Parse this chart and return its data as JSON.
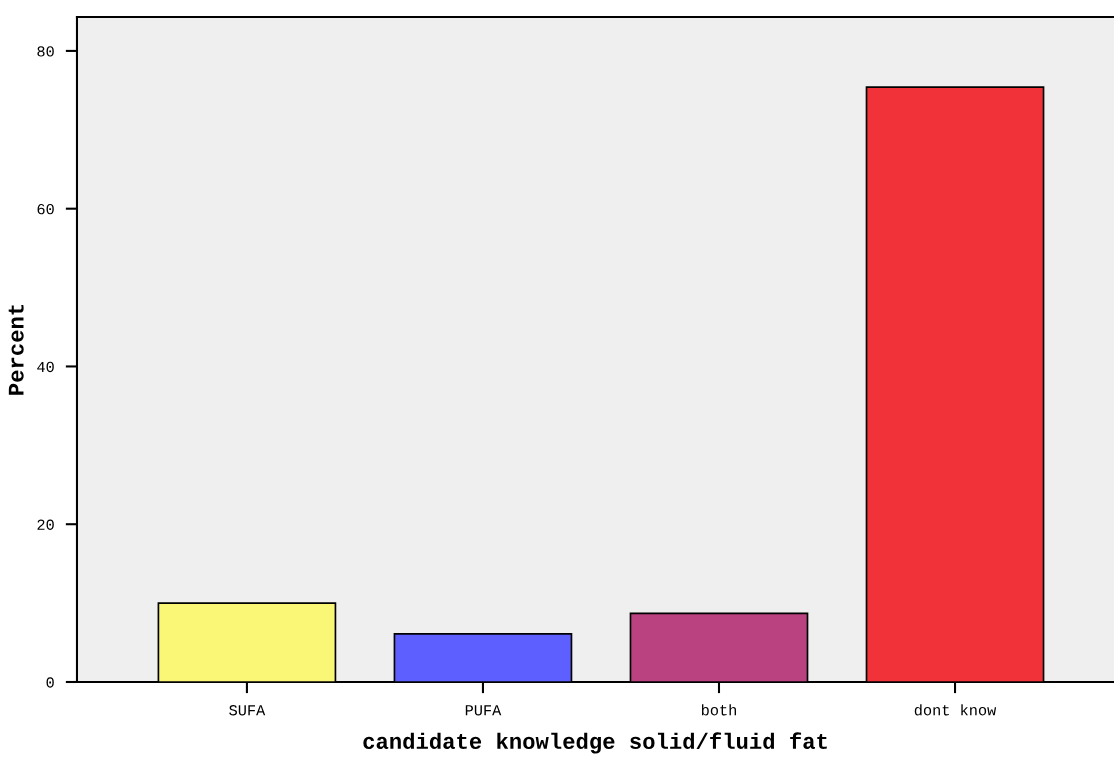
{
  "chart_data": {
    "type": "bar",
    "xlabel": "candidate knowledge solid/fluid fat",
    "ylabel": "Percent",
    "categories": [
      "SUFA",
      "PUFA",
      "both",
      "dont know"
    ],
    "values": [
      10.0,
      6.1,
      8.7,
      75.4
    ],
    "colors": [
      "#faf777",
      "#5d60fe",
      "#ba4280",
      "#f13339"
    ],
    "ylim": [
      0,
      84.3
    ],
    "yticks": [
      0,
      20,
      40,
      60,
      80
    ],
    "grid": false,
    "legend": false
  }
}
